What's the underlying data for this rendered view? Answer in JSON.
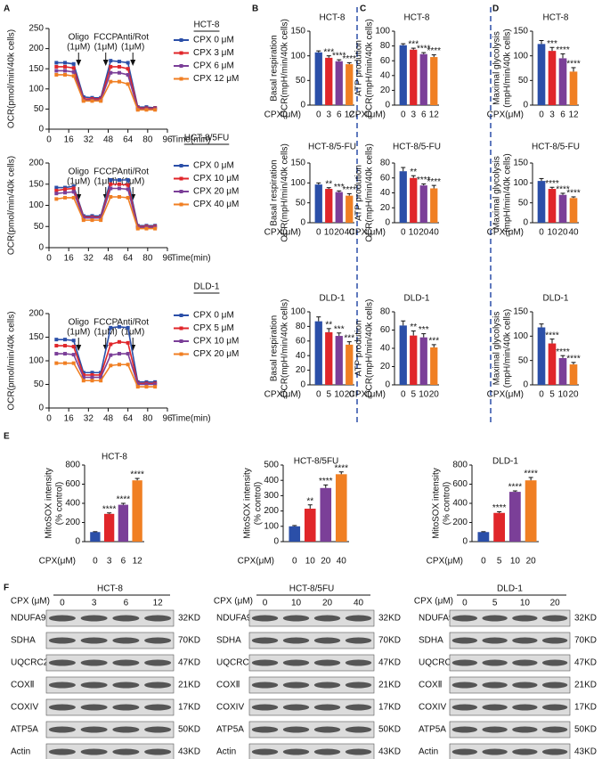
{
  "panel_labels": [
    "A",
    "B",
    "C",
    "D",
    "E",
    "F"
  ],
  "chart_data": [
    {
      "type": "line",
      "title": "HCT-8",
      "ylabel": "OCR(pmol/min/40k cells)",
      "xlabel": "Time(min)",
      "x": [
        6,
        13,
        20,
        28,
        35,
        42,
        50,
        57,
        64,
        72,
        79,
        86
      ],
      "xlim": [
        0,
        96
      ],
      "xticks": [
        0,
        16,
        32,
        48,
        64,
        80,
        96
      ],
      "ylim": [
        0,
        250
      ],
      "yticks": [
        0,
        50,
        100,
        150,
        200,
        250
      ],
      "injections": [
        {
          "label": "Oligo",
          "dose": "(1μM)",
          "x": 24
        },
        {
          "label": "FCCP",
          "dose": "(1μM)",
          "x": 46
        },
        {
          "label": "Anti/Rot",
          "dose": "(1μM)",
          "x": 68
        }
      ],
      "series": [
        {
          "name": "CPX 0 μM",
          "color": "#2b4fa8",
          "values": [
            165,
            165,
            162,
            80,
            78,
            78,
            170,
            168,
            165,
            55,
            55,
            53
          ]
        },
        {
          "name": "CPX 3 μM",
          "color": "#e0262a",
          "values": [
            155,
            155,
            152,
            75,
            75,
            75,
            155,
            155,
            150,
            53,
            52,
            52
          ]
        },
        {
          "name": "CPX 6 μM",
          "color": "#7b3f98",
          "values": [
            145,
            145,
            142,
            72,
            72,
            72,
            140,
            140,
            135,
            50,
            50,
            50
          ]
        },
        {
          "name": "CPX 12 μM",
          "color": "#f07f23",
          "values": [
            135,
            135,
            132,
            70,
            70,
            70,
            118,
            118,
            112,
            48,
            48,
            48
          ]
        }
      ]
    },
    {
      "type": "line",
      "title": "HCT-8/5FU",
      "ylabel": "OCR(pmol/min/40k cells)",
      "xlabel": "Time(min)",
      "x": [
        6,
        13,
        20,
        28,
        35,
        42,
        50,
        57,
        64,
        72,
        79,
        86
      ],
      "xlim": [
        0,
        96
      ],
      "xticks": [
        0,
        16,
        32,
        48,
        64,
        80,
        96
      ],
      "ylim": [
        0,
        200
      ],
      "yticks": [
        0,
        50,
        100,
        150,
        200
      ],
      "injections": [
        {
          "label": "Oligo",
          "dose": "(1μM)",
          "x": 24
        },
        {
          "label": "FCCP",
          "dose": "(1μM)",
          "x": 46
        },
        {
          "label": "Anti/Rot",
          "dose": "(1μM)",
          "x": 68
        }
      ],
      "series": [
        {
          "name": "CPX 0 μM",
          "color": "#2b4fa8",
          "values": [
            142,
            142,
            145,
            75,
            75,
            75,
            160,
            160,
            160,
            52,
            52,
            52
          ]
        },
        {
          "name": "CPX 10 μM",
          "color": "#e0262a",
          "values": [
            135,
            138,
            140,
            72,
            72,
            72,
            150,
            150,
            148,
            50,
            50,
            50
          ]
        },
        {
          "name": "CPX 20 μM",
          "color": "#7b3f98",
          "values": [
            128,
            130,
            132,
            70,
            70,
            70,
            140,
            140,
            138,
            48,
            48,
            48
          ]
        },
        {
          "name": "CPX 40 μM",
          "color": "#f07f23",
          "values": [
            115,
            118,
            118,
            65,
            65,
            65,
            120,
            120,
            118,
            45,
            45,
            45
          ]
        }
      ]
    },
    {
      "type": "line",
      "title": "DLD-1",
      "ylabel": "OCR(pmol/min/40k cells)",
      "xlabel": "Time(min)",
      "x": [
        6,
        13,
        20,
        28,
        35,
        42,
        50,
        57,
        64,
        72,
        79,
        86
      ],
      "xlim": [
        0,
        96
      ],
      "xticks": [
        0,
        16,
        32,
        48,
        64,
        80,
        96
      ],
      "ylim": [
        0,
        200
      ],
      "yticks": [
        0,
        50,
        100,
        150,
        200
      ],
      "injections": [
        {
          "label": "Oligo",
          "dose": "(1μM)",
          "x": 24
        },
        {
          "label": "FCCP",
          "dose": "(1μM)",
          "x": 46
        },
        {
          "label": "Anti/Rot",
          "dose": "(1μM)",
          "x": 68
        }
      ],
      "series": [
        {
          "name": "CPX 0 μM",
          "color": "#2b4fa8",
          "values": [
            145,
            145,
            143,
            75,
            75,
            75,
            170,
            172,
            170,
            55,
            55,
            55
          ]
        },
        {
          "name": "CPX 5 μM",
          "color": "#e0262a",
          "values": [
            132,
            132,
            130,
            70,
            70,
            70,
            135,
            140,
            138,
            52,
            52,
            52
          ]
        },
        {
          "name": "CPX 10 μM",
          "color": "#7b3f98",
          "values": [
            115,
            115,
            113,
            65,
            65,
            65,
            112,
            115,
            115,
            50,
            50,
            50
          ]
        },
        {
          "name": "CPX 20 μM",
          "color": "#f07f23",
          "values": [
            95,
            95,
            95,
            58,
            58,
            58,
            90,
            92,
            92,
            45,
            45,
            45
          ]
        }
      ]
    },
    {
      "type": "bar",
      "title": "HCT-8",
      "ylabel": [
        "Basal respiration",
        "OCR(mpH/min/40k cells)"
      ],
      "xlabel": "CPX(μM)",
      "categories": [
        "0",
        "3",
        "6",
        "12"
      ],
      "values": [
        107,
        96,
        89,
        83
      ],
      "errors": [
        3,
        4,
        3,
        3
      ],
      "significance": [
        null,
        "***",
        "****",
        "****"
      ],
      "colors": [
        "#2b4fa8",
        "#e0262a",
        "#7b3f98",
        "#f07f23"
      ],
      "ylim": [
        0,
        150
      ],
      "yticks": [
        0,
        50,
        100,
        150
      ]
    },
    {
      "type": "bar",
      "title": "HCT-8/5-FU",
      "ylabel": [
        "Basal respiration",
        "OCR(mpH/min/40k cells)"
      ],
      "xlabel": "CPX(μM)",
      "categories": [
        "0",
        "10",
        "20",
        "40"
      ],
      "values": [
        96,
        85,
        77,
        68
      ],
      "errors": [
        4,
        3,
        3,
        5
      ],
      "significance": [
        null,
        "**",
        "***",
        "****"
      ],
      "colors": [
        "#2b4fa8",
        "#e0262a",
        "#7b3f98",
        "#f07f23"
      ],
      "ylim": [
        0,
        150
      ],
      "yticks": [
        0,
        50,
        100,
        150
      ]
    },
    {
      "type": "bar",
      "title": "DLD-1",
      "ylabel": [
        "Basal respiration",
        "OCR(mpH/min/40k cells)"
      ],
      "xlabel": "CPX(μM)",
      "categories": [
        "0",
        "5",
        "10",
        "20"
      ],
      "values": [
        87,
        72,
        67,
        55
      ],
      "errors": [
        6,
        5,
        4,
        4
      ],
      "significance": [
        null,
        "**",
        "***",
        "***"
      ],
      "colors": [
        "#2b4fa8",
        "#e0262a",
        "#7b3f98",
        "#f07f23"
      ],
      "ylim": [
        0,
        100
      ],
      "yticks": [
        0,
        20,
        40,
        60,
        80,
        100
      ]
    },
    {
      "type": "bar",
      "title": "HCT-8",
      "ylabel": [
        "ATP prodution",
        "OCR(mpH/min/40k cells)"
      ],
      "xlabel": "CPX(μM)",
      "categories": [
        "0",
        "3",
        "6",
        "12"
      ],
      "values": [
        81,
        75,
        69,
        65
      ],
      "errors": [
        2,
        2,
        2,
        3
      ],
      "significance": [
        null,
        "***",
        "****",
        "****"
      ],
      "colors": [
        "#2b4fa8",
        "#e0262a",
        "#7b3f98",
        "#f07f23"
      ],
      "ylim": [
        0,
        100
      ],
      "yticks": [
        0,
        20,
        40,
        60,
        80,
        100
      ]
    },
    {
      "type": "bar",
      "title": "HCT-8/5-FU",
      "ylabel": [
        "ATP prodution",
        "OCR(mpH/min/40k cells)"
      ],
      "xlabel": "CPX(μM)",
      "categories": [
        "0",
        "10",
        "20",
        "40"
      ],
      "values": [
        69,
        60,
        50,
        46
      ],
      "errors": [
        5,
        3,
        2,
        4
      ],
      "significance": [
        null,
        "**",
        "****",
        "****"
      ],
      "colors": [
        "#2b4fa8",
        "#e0262a",
        "#7b3f98",
        "#f07f23"
      ],
      "ylim": [
        0,
        80
      ],
      "yticks": [
        0,
        20,
        40,
        60,
        80
      ]
    },
    {
      "type": "bar",
      "title": "DLD-1",
      "ylabel": [
        "ATP prodution",
        "OCR(mpH/min/40k cells)"
      ],
      "xlabel": "CPX(μM)",
      "categories": [
        "0",
        "5",
        "10",
        "20"
      ],
      "values": [
        65,
        54,
        52,
        41
      ],
      "errors": [
        5,
        5,
        4,
        3
      ],
      "significance": [
        null,
        "**",
        "***",
        "***"
      ],
      "colors": [
        "#2b4fa8",
        "#e0262a",
        "#7b3f98",
        "#f07f23"
      ],
      "ylim": [
        0,
        80
      ],
      "yticks": [
        0,
        20,
        40,
        60,
        80
      ]
    },
    {
      "type": "bar",
      "title": "HCT-8",
      "ylabel": [
        "Maximal glycolysis",
        "(mpH/min/40k cells)"
      ],
      "xlabel": "CPX(μM)",
      "categories": [
        "0",
        "3",
        "6",
        "12"
      ],
      "values": [
        124,
        110,
        95,
        68
      ],
      "errors": [
        7,
        7,
        9,
        8
      ],
      "significance": [
        null,
        "***",
        "****",
        "****"
      ],
      "colors": [
        "#2b4fa8",
        "#e0262a",
        "#7b3f98",
        "#f07f23"
      ],
      "ylim": [
        0,
        150
      ],
      "yticks": [
        0,
        50,
        100,
        150
      ]
    },
    {
      "type": "bar",
      "title": "HCT-8/5-FU",
      "ylabel": [
        "Maximal glycolysis",
        "(mpH/min/40k cells)"
      ],
      "xlabel": "CPX(μM)",
      "categories": [
        "0",
        "10",
        "20",
        "40"
      ],
      "values": [
        105,
        85,
        70,
        62
      ],
      "errors": [
        6,
        4,
        4,
        3
      ],
      "significance": [
        null,
        "****",
        "****",
        "****"
      ],
      "colors": [
        "#2b4fa8",
        "#e0262a",
        "#7b3f98",
        "#f07f23"
      ],
      "ylim": [
        0,
        150
      ],
      "yticks": [
        0,
        50,
        100,
        150
      ]
    },
    {
      "type": "bar",
      "title": "DLD-1",
      "ylabel": [
        "Maximal glycolysis",
        "(mpH/min/40k cells)"
      ],
      "xlabel": "CPX(μM)",
      "categories": [
        "0",
        "5",
        "10",
        "20"
      ],
      "values": [
        118,
        85,
        55,
        42
      ],
      "errors": [
        7,
        9,
        5,
        4
      ],
      "significance": [
        null,
        "****",
        "****",
        "****"
      ],
      "colors": [
        "#2b4fa8",
        "#e0262a",
        "#7b3f98",
        "#f07f23"
      ],
      "ylim": [
        0,
        150
      ],
      "yticks": [
        0,
        50,
        100,
        150
      ]
    },
    {
      "type": "bar",
      "title": "HCT-8",
      "ylabel": [
        "MitoSOX intensity",
        "(% control)"
      ],
      "xlabel": "CPX(μM)",
      "categories": [
        "0",
        "3",
        "6",
        "12"
      ],
      "values": [
        100,
        290,
        385,
        640
      ],
      "errors": [
        4,
        10,
        15,
        20
      ],
      "significance": [
        null,
        "****",
        "****",
        "****"
      ],
      "colors": [
        "#2b4fa8",
        "#e0262a",
        "#7b3f98",
        "#f07f23"
      ],
      "ylim": [
        0,
        800
      ],
      "yticks": [
        0,
        200,
        400,
        600,
        800
      ]
    },
    {
      "type": "bar",
      "title": "HCT-8/5FU",
      "ylabel": [
        "MitoSOX intensity",
        "(% control)"
      ],
      "xlabel": "CPX(μM)",
      "categories": [
        "0",
        "10",
        "20",
        "40"
      ],
      "values": [
        100,
        215,
        350,
        440
      ],
      "errors": [
        5,
        25,
        20,
        15
      ],
      "significance": [
        null,
        "**",
        "****",
        "****"
      ],
      "colors": [
        "#2b4fa8",
        "#e0262a",
        "#7b3f98",
        "#f07f23"
      ],
      "ylim": [
        0,
        500
      ],
      "yticks": [
        0,
        100,
        200,
        300,
        400,
        500
      ]
    },
    {
      "type": "bar",
      "title": "DLD-1",
      "ylabel": [
        "MitoSOX intensity",
        "(% control)"
      ],
      "xlabel": "CPX(μM)",
      "categories": [
        "0",
        "5",
        "10",
        "20"
      ],
      "values": [
        100,
        300,
        520,
        640
      ],
      "errors": [
        4,
        12,
        10,
        30
      ],
      "significance": [
        null,
        "****",
        "****",
        "****"
      ],
      "colors": [
        "#2b4fa8",
        "#e0262a",
        "#7b3f98",
        "#f07f23"
      ],
      "ylim": [
        0,
        800
      ],
      "yticks": [
        0,
        200,
        400,
        600,
        800
      ]
    }
  ],
  "blots": [
    {
      "title": "HCT-8",
      "treatment": "CPX (μM)",
      "lanes": [
        "0",
        "3",
        "6",
        "12"
      ],
      "rows": [
        {
          "protein": "NDUFA9",
          "size": "32KD"
        },
        {
          "protein": "SDHA",
          "size": "70KD"
        },
        {
          "protein": "UQCRC2",
          "size": "47KD"
        },
        {
          "protein": "COXⅡ",
          "size": "21KD"
        },
        {
          "protein": "COXIV",
          "size": "17KD"
        },
        {
          "protein": "ATP5A",
          "size": "50KD"
        },
        {
          "protein": "Actin",
          "size": "43KD"
        }
      ]
    },
    {
      "title": "HCT-8/5FU",
      "treatment": "CPX (μM)",
      "lanes": [
        "0",
        "10",
        "20",
        "40"
      ],
      "rows": [
        {
          "protein": "NDUFA9",
          "size": "32KD"
        },
        {
          "protein": "SDHA",
          "size": "70KD"
        },
        {
          "protein": "UQCRC2",
          "size": "47KD"
        },
        {
          "protein": "COXⅡ",
          "size": "21KD"
        },
        {
          "protein": "COXIV",
          "size": "17KD"
        },
        {
          "protein": "ATP5A",
          "size": "50KD"
        },
        {
          "protein": "Actin",
          "size": "43KD"
        }
      ]
    },
    {
      "title": "DLD-1",
      "treatment": "CPX (μM)",
      "lanes": [
        "0",
        "5",
        "10",
        "20"
      ],
      "rows": [
        {
          "protein": "NDUFA9",
          "size": "32KD"
        },
        {
          "protein": "SDHA",
          "size": "70KD"
        },
        {
          "protein": "UQCRC2",
          "size": "47KD"
        },
        {
          "protein": "COXⅡ",
          "size": "21KD"
        },
        {
          "protein": "COXIV",
          "size": "17KD"
        },
        {
          "protein": "ATP5A",
          "size": "50KD"
        },
        {
          "protein": "Actin",
          "size": "43KD"
        }
      ]
    }
  ]
}
